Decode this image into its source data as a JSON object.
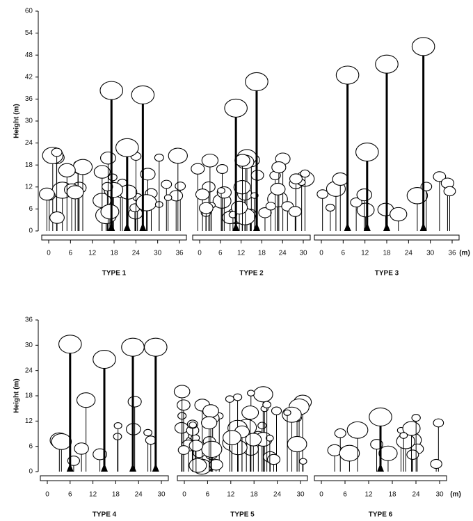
{
  "top": {
    "y_axis": {
      "label": "Height (m)",
      "ticks": [
        0,
        6,
        12,
        18,
        24,
        30,
        36,
        42,
        48,
        54,
        60
      ]
    },
    "panels": [
      {
        "label": "TYPE 1",
        "ticks": [
          0,
          6,
          12,
          18,
          24,
          30,
          36
        ]
      },
      {
        "label": "TYPE 2",
        "ticks": [
          0,
          6,
          12,
          18,
          24,
          30
        ]
      },
      {
        "label": "TYPE 3",
        "ticks": [
          0,
          6,
          12,
          18,
          24,
          30,
          36
        ]
      }
    ],
    "unit": "(m)"
  },
  "bottom": {
    "y_axis": {
      "label": "Height (m)",
      "ticks": [
        0,
        6,
        12,
        18,
        24,
        30,
        36
      ]
    },
    "panels": [
      {
        "label": "TYPE 4",
        "ticks": [
          0,
          6,
          12,
          18,
          24,
          30
        ]
      },
      {
        "label": "TYPE 5",
        "ticks": [
          0,
          6,
          12,
          18,
          24,
          30
        ]
      },
      {
        "label": "TYPE 6",
        "ticks": [
          0,
          6,
          12,
          18,
          24,
          30
        ]
      }
    ],
    "unit": "(m)"
  }
}
